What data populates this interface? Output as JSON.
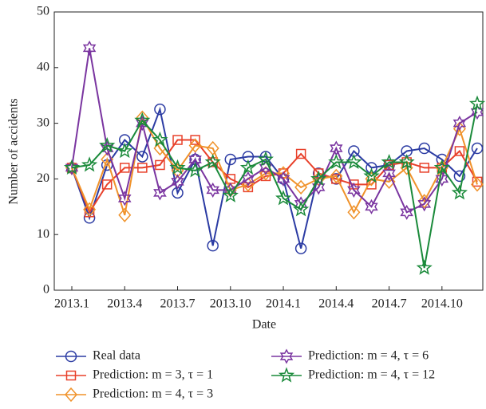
{
  "chart_data": {
    "type": "line",
    "xlabel": "Date",
    "ylabel": "Number of accidents",
    "categories": [
      "2013.1",
      null,
      null,
      "2013.4",
      null,
      null,
      "2013.7",
      null,
      null,
      "2013.10",
      null,
      null,
      "2014.1",
      null,
      null,
      "2014.4",
      null,
      null,
      "2014.7",
      null,
      null,
      "2014.10",
      null,
      null
    ],
    "ylim": [
      0,
      50
    ],
    "yticks": [
      0,
      10,
      20,
      30,
      40,
      50
    ],
    "series": [
      {
        "name": "Real data",
        "color": "#2b3ba3",
        "marker": "circle",
        "values": [
          22,
          13,
          22.5,
          27,
          24,
          32.5,
          17.5,
          23.5,
          8,
          23.5,
          24,
          24,
          20,
          7.5,
          21,
          20,
          25,
          22,
          22.5,
          25,
          25.5,
          23.5,
          20.5,
          25.5
        ]
      },
      {
        "name": "Prediction: m = 3, τ = 1",
        "color": "#e8402a",
        "marker": "square",
        "values": [
          22,
          14,
          19,
          22,
          22,
          22.5,
          27,
          27,
          23,
          20,
          18.5,
          20.5,
          21,
          24.5,
          21,
          20,
          19,
          19,
          22.5,
          23,
          22,
          22,
          25,
          19.5
        ]
      },
      {
        "name": "Prediction: m = 4, τ = 3",
        "color": "#f0922a",
        "marker": "diamond",
        "values": [
          22,
          14.5,
          23.5,
          13.5,
          31,
          25.5,
          21.5,
          26,
          25.5,
          18,
          19,
          21,
          21,
          18.5,
          20,
          20.5,
          14,
          20,
          19.5,
          22,
          16,
          22,
          29,
          19
        ]
      },
      {
        "name": "Prediction: m = 4, τ = 6",
        "color": "#7a35a0",
        "marker": "hexagram",
        "values": [
          22,
          43.5,
          25.5,
          16.5,
          30,
          17.5,
          19.5,
          23.5,
          18,
          18,
          20,
          22,
          20,
          15.5,
          18.5,
          25.5,
          18,
          15,
          21,
          14,
          15.5,
          20,
          30,
          32
        ]
      },
      {
        "name": "Prediction: m = 4, τ = 12",
        "color": "#1a8a3a",
        "marker": "pentagram",
        "values": [
          22,
          22.5,
          26,
          25,
          30.5,
          27,
          22,
          21.5,
          23,
          17,
          22,
          23.5,
          16.5,
          14.5,
          20,
          23,
          23,
          20.5,
          23,
          23,
          4,
          22,
          17.5,
          33.5
        ]
      }
    ]
  }
}
